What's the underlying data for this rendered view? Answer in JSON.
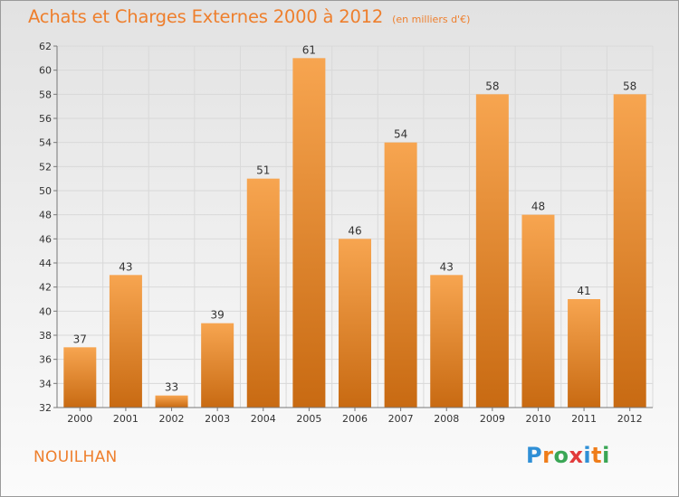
{
  "header": {
    "title": "Achats et Charges Externes 2000 à 2012",
    "subtitle": "(en milliers d'€)"
  },
  "footer": {
    "commune": "NOUILHAN",
    "logo": [
      "P",
      "r",
      "o",
      "x",
      "i",
      "t",
      "i"
    ],
    "logo_colors": [
      "#2f8fd6",
      "#ef7d1a",
      "#3aa655",
      "#e23b3b",
      "#2f8fd6",
      "#ef7d1a",
      "#3aa655"
    ]
  },
  "colors": {
    "bar_light": "#f7a550",
    "bar_dark": "#c86a12",
    "title": "#ee7f2d",
    "grid": "#d9d9d9",
    "text": "#333333"
  },
  "chart_data": {
    "type": "bar",
    "title": "Achats et Charges Externes 2000 à 2012",
    "subtitle": "(en milliers d'€)",
    "categories": [
      "2000",
      "2001",
      "2002",
      "2003",
      "2004",
      "2005",
      "2006",
      "2007",
      "2008",
      "2009",
      "2010",
      "2011",
      "2012"
    ],
    "values": [
      37,
      43,
      33,
      39,
      51,
      61,
      46,
      54,
      43,
      58,
      48,
      41,
      58
    ],
    "ylim": [
      32,
      62
    ],
    "yticks": [
      32,
      34,
      36,
      38,
      40,
      42,
      44,
      46,
      48,
      50,
      52,
      54,
      56,
      58,
      60,
      62
    ],
    "grid": true,
    "data_labels": true
  }
}
